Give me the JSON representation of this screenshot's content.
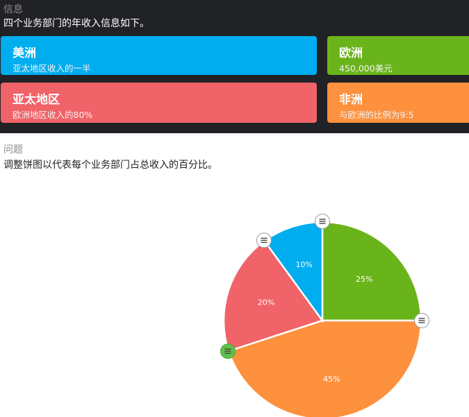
{
  "info": {
    "label": "信息",
    "text": "四个业务部门的年收入信息如下。",
    "cards": [
      {
        "title": "美洲",
        "sub": "亚太地区收入的一半",
        "color": "#00adef"
      },
      {
        "title": "欧洲",
        "sub": "450,000美元",
        "color": "#6ab41b"
      },
      {
        "title": "亚太地区",
        "sub": "欧洲地区收入的80%",
        "color": "#f06368"
      },
      {
        "title": "非洲",
        "sub": "与欧洲的比例为9:5",
        "color": "#fd913e"
      }
    ]
  },
  "question": {
    "label": "问题",
    "text": "调整饼图以代表每个业务部门占总收入的百分比。"
  },
  "chart_data": {
    "type": "pie",
    "order": "clockwise from top",
    "slices": [
      {
        "label": "25%",
        "value": 25,
        "color": "#6ab41b"
      },
      {
        "label": "45%",
        "value": 45,
        "color": "#fd913e"
      },
      {
        "label": "20%",
        "value": 20,
        "color": "#f06368"
      },
      {
        "label": "10%",
        "value": 10,
        "color": "#00adef"
      }
    ],
    "handle_icon": "menu-lines-icon",
    "active_handle_color": "#5ec04a"
  }
}
